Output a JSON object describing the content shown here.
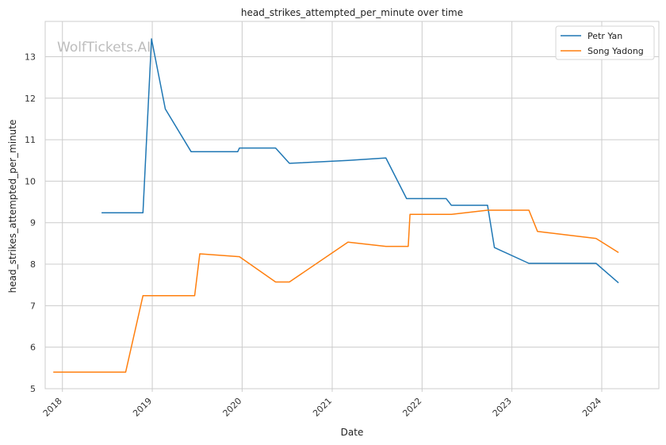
{
  "chart_data": {
    "type": "line",
    "title": "head_strikes_attempted_per_minute over time",
    "xlabel": "Date",
    "ylabel": "head_strikes_attempted_per_minute",
    "watermark": "WolfTickets.AI",
    "xlim": [
      "2017-10-23",
      "2024-08-20"
    ],
    "ylim": [
      5,
      13.85
    ],
    "x_ticks": [
      "2018",
      "2019",
      "2020",
      "2021",
      "2022",
      "2023",
      "2024"
    ],
    "y_ticks": [
      "5",
      "6",
      "7",
      "8",
      "9",
      "10",
      "11",
      "12",
      "13"
    ],
    "grid": true,
    "legend_position": "top-right",
    "series": [
      {
        "name": "Petr Yan",
        "color": "#1f77b4",
        "points": [
          [
            "2018-06-09",
            9.24
          ],
          [
            "2018-11-24",
            9.24
          ],
          [
            "2018-12-29",
            13.43
          ],
          [
            "2019-02-23",
            11.74
          ],
          [
            "2019-06-08",
            10.71
          ],
          [
            "2019-12-14",
            10.71
          ],
          [
            "2019-12-21",
            10.8
          ],
          [
            "2020-05-16",
            10.8
          ],
          [
            "2020-07-11",
            10.43
          ],
          [
            "2021-03-06",
            10.5
          ],
          [
            "2021-08-07",
            10.56
          ],
          [
            "2021-10-30",
            9.58
          ],
          [
            "2022-04-09",
            9.58
          ],
          [
            "2022-04-30",
            9.42
          ],
          [
            "2022-09-24",
            9.42
          ],
          [
            "2022-10-22",
            8.4
          ],
          [
            "2023-03-11",
            8.02
          ],
          [
            "2023-12-09",
            8.02
          ],
          [
            "2024-03-09",
            7.55
          ]
        ]
      },
      {
        "name": "Song Yadong",
        "color": "#ff7f0e",
        "points": [
          [
            "2017-11-25",
            5.4
          ],
          [
            "2018-09-15",
            5.4
          ],
          [
            "2018-11-24",
            7.24
          ],
          [
            "2019-06-22",
            7.24
          ],
          [
            "2019-07-13",
            8.25
          ],
          [
            "2019-12-21",
            8.18
          ],
          [
            "2020-05-16",
            7.57
          ],
          [
            "2020-07-11",
            7.57
          ],
          [
            "2021-03-06",
            8.53
          ],
          [
            "2021-08-07",
            8.43
          ],
          [
            "2021-11-06",
            8.43
          ],
          [
            "2021-11-13",
            9.2
          ],
          [
            "2022-04-30",
            9.2
          ],
          [
            "2022-09-24",
            9.3
          ],
          [
            "2023-03-11",
            9.3
          ],
          [
            "2023-04-15",
            8.79
          ],
          [
            "2023-12-09",
            8.62
          ],
          [
            "2024-03-09",
            8.28
          ]
        ]
      }
    ]
  }
}
